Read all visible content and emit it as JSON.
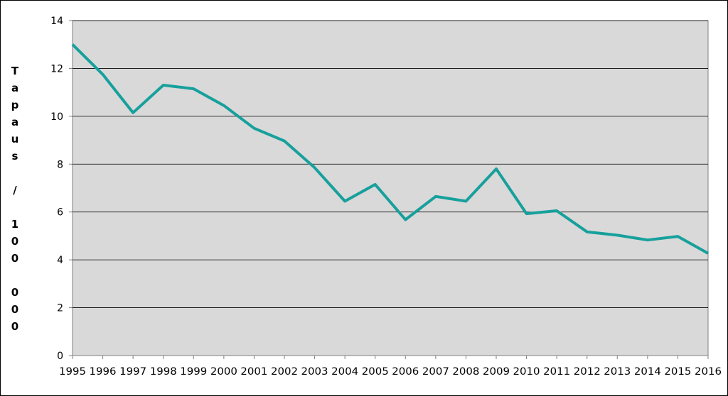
{
  "chart_data": {
    "type": "line",
    "title": "",
    "xlabel": "",
    "ylabel": "Tapaus / 100 000",
    "categories": [
      "1995",
      "1996",
      "1997",
      "1998",
      "1999",
      "2000",
      "2001",
      "2002",
      "2003",
      "2004",
      "2005",
      "2006",
      "2007",
      "2008",
      "2009",
      "2010",
      "2011",
      "2012",
      "2013",
      "2014",
      "2015",
      "2016"
    ],
    "series": [
      {
        "values": [
          13.0,
          11.75,
          10.15,
          11.3,
          11.15,
          10.45,
          9.5,
          8.97,
          7.85,
          6.45,
          7.15,
          5.68,
          6.65,
          6.45,
          7.8,
          5.93,
          6.05,
          5.17,
          5.03,
          4.83,
          4.98,
          4.27
        ],
        "color": "#17a09c"
      }
    ],
    "ylim": [
      0,
      14
    ],
    "yticks": [
      0,
      2,
      4,
      6,
      8,
      10,
      12,
      14
    ],
    "grid": true,
    "plot_background": "#d9d9d9",
    "legend": "none"
  }
}
